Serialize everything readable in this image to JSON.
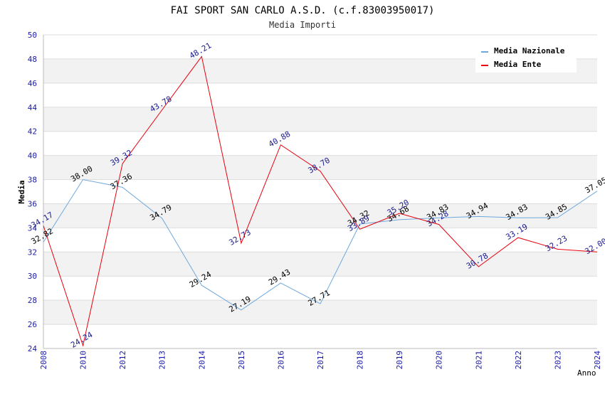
{
  "chart_data": {
    "type": "line",
    "title": "FAI SPORT SAN CARLO A.S.D. (c.f.83003950017)",
    "subtitle": "Media Importi",
    "xlabel": "Anno",
    "ylabel": "Media",
    "ylim": [
      24,
      50
    ],
    "ytick_step": 2,
    "categories": [
      "2008",
      "2010",
      "2012",
      "2013",
      "2014",
      "2015",
      "2016",
      "2017",
      "2018",
      "2019",
      "2020",
      "2021",
      "2022",
      "2023",
      "2024"
    ],
    "series": [
      {
        "name": "Media Nazionale",
        "color": "#6fa8dc",
        "label_color": "#000000",
        "values": [
          32.82,
          38.0,
          37.36,
          34.79,
          29.24,
          27.19,
          29.43,
          27.71,
          34.32,
          34.68,
          34.83,
          34.94,
          34.83,
          34.85,
          37.05
        ],
        "labels": [
          "32.82",
          "38.00",
          "37.36",
          "34.79",
          "29.24",
          "27.19",
          "29.43",
          "27.71",
          "34.32",
          "34.68",
          "34.83",
          "34.94",
          "34.83",
          "34.85",
          "37.05"
        ]
      },
      {
        "name": "Media Ente",
        "color": "#e8000b",
        "label_color": "#1a1a8c",
        "values": [
          34.17,
          24.24,
          39.32,
          43.78,
          48.21,
          32.73,
          40.88,
          38.7,
          33.89,
          35.2,
          34.28,
          30.78,
          33.19,
          32.23,
          32.0
        ],
        "labels": [
          "34.17",
          "24.24",
          "39.32",
          "43.78",
          "48.21",
          "32.73",
          "40.88",
          "38.70",
          "33.89",
          "35.20",
          "34.28",
          "30.78",
          "33.19",
          "32.23",
          "32.00"
        ]
      }
    ],
    "grid": true,
    "legend": "top-right"
  },
  "colors": {
    "tick_label": "#1a1aa6",
    "band": "#f2f2f2",
    "grid": "#dddddd",
    "axis": "#bbbbbb"
  }
}
